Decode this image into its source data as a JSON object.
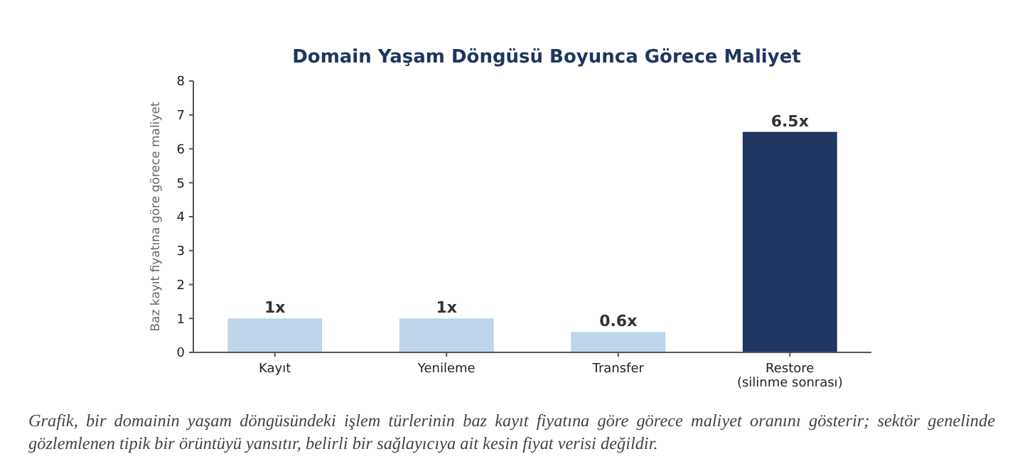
{
  "chart_data": {
    "type": "bar",
    "title": "Domain Yaşam Döngüsü Boyunca Görece Maliyet",
    "ylabel": "Baz kayıt fiyatına göre görece maliyet",
    "categories": [
      "Kayıt",
      "Yenileme",
      "Transfer",
      "Restore\n(silinme sonrası)"
    ],
    "values": [
      1,
      1,
      0.6,
      6.5
    ],
    "colors": [
      "#bdd4e9",
      "#bdd4e9",
      "#bdd4e9",
      "#1f3660"
    ],
    "value_labels": [
      "1x",
      "1x",
      "0.6x",
      "6.5x"
    ],
    "ylim": [
      0,
      8
    ],
    "yticks": [
      0,
      1,
      2,
      3,
      4,
      5,
      6,
      7,
      8
    ],
    "grid": false,
    "annotations": [
      "Grafik, bir domainin yaşam döngüsündeki işlem türlerinin baz kayıt fiyatına göre görece maliyet oranını gösterir; sektör genelinde gözlemlenen tipik bir örüntüyü yansıtır, belirli bir sağlayıcıya ait kesin fiyat verisi değildir."
    ]
  }
}
